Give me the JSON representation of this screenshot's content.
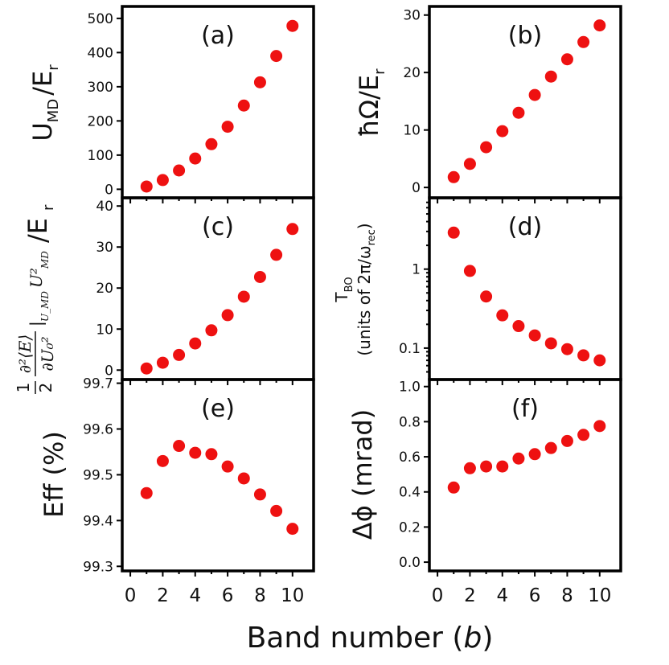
{
  "figure": {
    "xlabel": "Band number",
    "xlabel_var": "b",
    "x_ticks": [
      0,
      2,
      4,
      6,
      8,
      10
    ]
  },
  "colors": {
    "marker": "#ee1111",
    "axis": "#000000"
  },
  "chart_data": [
    {
      "id": "a",
      "type": "scatter",
      "panel_label": "(a)",
      "ylabel_main": "U",
      "ylabel_sub": "MD",
      "ylabel_tail": "/E",
      "ylabel_tail_sub": "r",
      "x": [
        1,
        2,
        3,
        4,
        5,
        6,
        7,
        8,
        9,
        10
      ],
      "y": [
        8,
        27,
        55,
        90,
        132,
        183,
        245,
        313,
        390,
        478
      ],
      "ylim": [
        -25,
        535
      ],
      "yscale": "linear",
      "yticks": [
        0,
        100,
        200,
        300,
        400,
        500
      ],
      "ytick_labels": [
        "0",
        "100",
        "200",
        "300",
        "400",
        "500"
      ],
      "xlim": [
        -0.5,
        11.3
      ]
    },
    {
      "id": "b",
      "type": "scatter",
      "panel_label": "(b)",
      "ylabel_main": "ħΩ/E",
      "ylabel_sub": "r",
      "x": [
        1,
        2,
        3,
        4,
        5,
        6,
        7,
        8,
        9,
        10
      ],
      "y": [
        1.8,
        4.1,
        7.0,
        9.8,
        13.0,
        16.1,
        19.3,
        22.3,
        25.3,
        28.2
      ],
      "ylim": [
        -1.8,
        31.5
      ],
      "yscale": "linear",
      "yticks": [
        0,
        10,
        20,
        30
      ],
      "ytick_labels": [
        "0",
        "10",
        "20",
        "30"
      ],
      "xlim": [
        -0.5,
        11.3
      ]
    },
    {
      "id": "c",
      "type": "scatter",
      "panel_label": "(c)",
      "ylabel_lead": "1",
      "ylabel_lead2": "2",
      "ylabel_num": "∂²⟨E⟩",
      "ylabel_den": "∂U₀²",
      "ylabel_mid": "|",
      "ylabel_mid_sub": "U_MD",
      "ylabel_mult": "U²",
      "ylabel_mult_sub": "MD",
      "ylabel_tail": "/E",
      "ylabel_tail_sub": "r",
      "x": [
        1,
        2,
        3,
        4,
        5,
        6,
        7,
        8,
        9,
        10
      ],
      "y": [
        0.4,
        1.8,
        3.7,
        6.5,
        9.7,
        13.4,
        17.9,
        22.7,
        28.1,
        34.4
      ],
      "ylim": [
        -2.3,
        42
      ],
      "yscale": "linear",
      "yticks": [
        0,
        10,
        20,
        30,
        40
      ],
      "ytick_labels": [
        "0",
        "10",
        "20",
        "30",
        "40"
      ],
      "xlim": [
        -0.5,
        11.3
      ]
    },
    {
      "id": "d",
      "type": "scatter",
      "panel_label": "(d)",
      "ylabel_main": "T",
      "ylabel_sub": "BO",
      "ylabel_line2": "(units of 2π/ω",
      "ylabel_line2_sub": "rec",
      "ylabel_line2_end": ")",
      "x": [
        1,
        2,
        3,
        4,
        5,
        6,
        7,
        8,
        9,
        10
      ],
      "y": [
        2.9,
        0.95,
        0.45,
        0.26,
        0.19,
        0.145,
        0.115,
        0.097,
        0.081,
        0.07
      ],
      "ylim": [
        0.04,
        8
      ],
      "yscale": "log",
      "yticks": [
        0.1,
        1
      ],
      "ytick_labels": [
        "0.1",
        "1"
      ],
      "xlim": [
        -0.5,
        11.3
      ]
    },
    {
      "id": "e",
      "type": "scatter",
      "panel_label": "(e)",
      "ylabel_main": "Eff (%)",
      "x": [
        1,
        2,
        3,
        4,
        5,
        6,
        7,
        8,
        9,
        10
      ],
      "y": [
        99.46,
        99.53,
        99.563,
        99.548,
        99.545,
        99.518,
        99.492,
        99.457,
        99.421,
        99.382
      ],
      "ylim": [
        99.29,
        99.708
      ],
      "yscale": "linear",
      "yticks": [
        99.3,
        99.4,
        99.5,
        99.6,
        99.7
      ],
      "ytick_labels": [
        "99.3",
        "99.4",
        "99.5",
        "99.6",
        "99.7"
      ],
      "xlim": [
        -0.5,
        11.3
      ]
    },
    {
      "id": "f",
      "type": "scatter",
      "panel_label": "(f)",
      "ylabel_main": "Δϕ (mrad)",
      "x": [
        1,
        2,
        3,
        4,
        5,
        6,
        7,
        8,
        9,
        10
      ],
      "y": [
        0.425,
        0.535,
        0.545,
        0.545,
        0.59,
        0.615,
        0.65,
        0.69,
        0.725,
        0.775
      ],
      "ylim": [
        -0.05,
        1.04
      ],
      "yscale": "linear",
      "yticks": [
        0.0,
        0.2,
        0.4,
        0.6,
        0.8,
        1.0
      ],
      "ytick_labels": [
        "0.0",
        "0.2",
        "0.4",
        "0.6",
        "0.8",
        "1.0"
      ],
      "xlim": [
        -0.5,
        11.3
      ]
    }
  ]
}
